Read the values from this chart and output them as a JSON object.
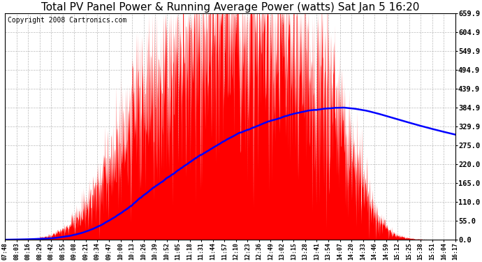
{
  "title": "Total PV Panel Power & Running Average Power (watts) Sat Jan 5 16:20",
  "copyright": "Copyright 2008 Cartronics.com",
  "yticks": [
    0.0,
    55.0,
    110.0,
    165.0,
    220.0,
    275.0,
    329.9,
    384.9,
    439.9,
    494.9,
    549.9,
    604.9,
    659.9
  ],
  "ymin": 0.0,
  "ymax": 659.9,
  "xtick_labels": [
    "07:48",
    "08:03",
    "08:16",
    "08:29",
    "08:42",
    "08:55",
    "09:08",
    "09:21",
    "09:34",
    "09:47",
    "10:00",
    "10:13",
    "10:26",
    "10:39",
    "10:52",
    "11:05",
    "11:18",
    "11:31",
    "11:44",
    "11:57",
    "12:10",
    "12:23",
    "12:36",
    "12:49",
    "13:02",
    "13:15",
    "13:28",
    "13:41",
    "13:54",
    "14:07",
    "14:20",
    "14:33",
    "14:46",
    "14:59",
    "15:12",
    "15:25",
    "15:38",
    "15:51",
    "16:04",
    "16:17"
  ],
  "area_color": "#FF0000",
  "line_color": "#0000FF",
  "background_color": "#FFFFFF",
  "plot_background": "#FFFFFF",
  "grid_color": "#AAAAAA",
  "title_fontsize": 11,
  "copyright_fontsize": 7
}
